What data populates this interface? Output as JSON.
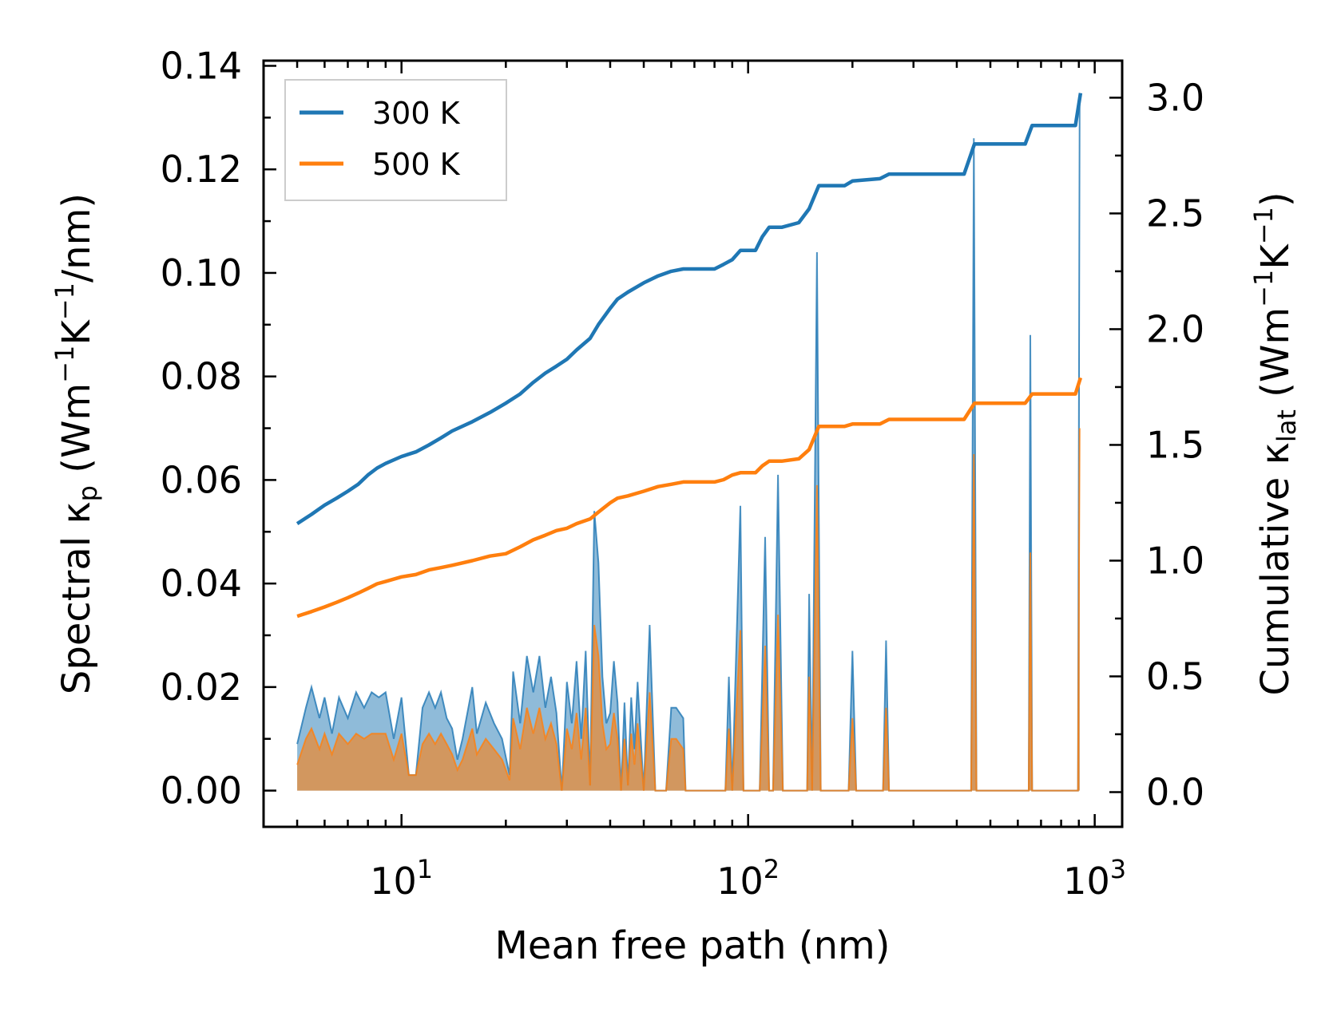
{
  "chart_data": {
    "type": "line",
    "title": "",
    "xlabel": "Mean free path (nm)",
    "ylabel": "Spectral κp (Wm−1K−1/nm)",
    "ylabel_parts": {
      "main": "Spectral κ",
      "sub": "p",
      "unit_open": " (Wm",
      "sup1": "−1",
      "unit_mid": "K",
      "sup2": "−1",
      "unit_close": "/nm)"
    },
    "y2label": "Cumulative κlat (Wm−1K−1)",
    "y2label_parts": {
      "main": "Cumulative κ",
      "sub": "lat",
      "unit_open": " (Wm",
      "sup1": "−1",
      "unit_mid": "K",
      "sup2": "−1",
      "unit_close": ")"
    },
    "xscale": "log",
    "xlim": [
      4.0,
      1200
    ],
    "ylim": [
      -0.007,
      0.141
    ],
    "y2lim": [
      -0.15,
      3.16
    ],
    "x_ticks": [
      {
        "base": "10",
        "exp": "1",
        "value": 10
      },
      {
        "base": "10",
        "exp": "2",
        "value": 100
      },
      {
        "base": "10",
        "exp": "3",
        "value": 1000
      }
    ],
    "y_ticks": [
      "0.00",
      "0.02",
      "0.04",
      "0.06",
      "0.08",
      "0.10",
      "0.12",
      "0.14"
    ],
    "y2_ticks": [
      "0.0",
      "0.5",
      "1.0",
      "1.5",
      "2.0",
      "2.5",
      "3.0"
    ],
    "legend_position": "top-left",
    "legend": [
      {
        "label": "300 K",
        "color": "#1f77b4"
      },
      {
        "label": "500 K",
        "color": "#ff7f0e"
      }
    ],
    "series": [
      {
        "name": "300 K",
        "color": "#1f77b4",
        "cumulative": [
          [
            5,
            1.16
          ],
          [
            5.5,
            1.2
          ],
          [
            6,
            1.24
          ],
          [
            6.5,
            1.27
          ],
          [
            7,
            1.3
          ],
          [
            7.5,
            1.33
          ],
          [
            8,
            1.37
          ],
          [
            8.5,
            1.4
          ],
          [
            9,
            1.42
          ],
          [
            10,
            1.45
          ],
          [
            11,
            1.47
          ],
          [
            12,
            1.5
          ],
          [
            13,
            1.53
          ],
          [
            14,
            1.56
          ],
          [
            16,
            1.6
          ],
          [
            18,
            1.64
          ],
          [
            20,
            1.68
          ],
          [
            22,
            1.72
          ],
          [
            24,
            1.77
          ],
          [
            26,
            1.81
          ],
          [
            28,
            1.84
          ],
          [
            30,
            1.87
          ],
          [
            32,
            1.91
          ],
          [
            35,
            1.96
          ],
          [
            37,
            2.02
          ],
          [
            40,
            2.09
          ],
          [
            42,
            2.13
          ],
          [
            45,
            2.16
          ],
          [
            50,
            2.2
          ],
          [
            55,
            2.23
          ],
          [
            60,
            2.25
          ],
          [
            65,
            2.26
          ],
          [
            80,
            2.26
          ],
          [
            85,
            2.28
          ],
          [
            90,
            2.3
          ],
          [
            95,
            2.34
          ],
          [
            105,
            2.34
          ],
          [
            110,
            2.4
          ],
          [
            115,
            2.44
          ],
          [
            125,
            2.44
          ],
          [
            140,
            2.46
          ],
          [
            150,
            2.52
          ],
          [
            160,
            2.62
          ],
          [
            190,
            2.62
          ],
          [
            200,
            2.64
          ],
          [
            240,
            2.65
          ],
          [
            255,
            2.67
          ],
          [
            420,
            2.67
          ],
          [
            450,
            2.8
          ],
          [
            630,
            2.8
          ],
          [
            660,
            2.88
          ],
          [
            880,
            2.88
          ],
          [
            910,
            3.02
          ]
        ],
        "spectral": [
          [
            5,
            0.009
          ],
          [
            5.3,
            0.016
          ],
          [
            5.5,
            0.02
          ],
          [
            5.8,
            0.014
          ],
          [
            6,
            0.018
          ],
          [
            6.3,
            0.011
          ],
          [
            6.6,
            0.018
          ],
          [
            7,
            0.014
          ],
          [
            7.4,
            0.019
          ],
          [
            7.8,
            0.016
          ],
          [
            8.2,
            0.019
          ],
          [
            8.6,
            0.018
          ],
          [
            9,
            0.019
          ],
          [
            9.5,
            0.01
          ],
          [
            10,
            0.018
          ],
          [
            10.5,
            0.003
          ],
          [
            11,
            0.003
          ],
          [
            11.5,
            0.016
          ],
          [
            12,
            0.019
          ],
          [
            12.5,
            0.016
          ],
          [
            13,
            0.019
          ],
          [
            13.5,
            0.014
          ],
          [
            14,
            0.012
          ],
          [
            14.5,
            0.006
          ],
          [
            15,
            0.01
          ],
          [
            16,
            0.02
          ],
          [
            16.5,
            0.011
          ],
          [
            17.5,
            0.017
          ],
          [
            18.5,
            0.013
          ],
          [
            19.5,
            0.01
          ],
          [
            20.5,
            0.003
          ],
          [
            21,
            0.023
          ],
          [
            22,
            0.013
          ],
          [
            23,
            0.026
          ],
          [
            24,
            0.019
          ],
          [
            25,
            0.026
          ],
          [
            26,
            0.016
          ],
          [
            27,
            0.022
          ],
          [
            28,
            0.015
          ],
          [
            29,
            0.0
          ],
          [
            30,
            0.021
          ],
          [
            31,
            0.013
          ],
          [
            32,
            0.025
          ],
          [
            33,
            0.01
          ],
          [
            34,
            0.027
          ],
          [
            35,
            0.001
          ],
          [
            36,
            0.054
          ],
          [
            37,
            0.044
          ],
          [
            38,
            0.022
          ],
          [
            39,
            0.013
          ],
          [
            40,
            0.015
          ],
          [
            41,
            0.025
          ],
          [
            42,
            0.017
          ],
          [
            43,
            0.0
          ],
          [
            44,
            0.017
          ],
          [
            45,
            0.001
          ],
          [
            46,
            0.018
          ],
          [
            47,
            0.008
          ],
          [
            48,
            0.021
          ],
          [
            50,
            0.0
          ],
          [
            52,
            0.032
          ],
          [
            54,
            0.0
          ],
          [
            58,
            0.0
          ],
          [
            60,
            0.016
          ],
          [
            62,
            0.016
          ],
          [
            65,
            0.014
          ],
          [
            66,
            0.0
          ],
          [
            86,
            0.0
          ],
          [
            88,
            0.022
          ],
          [
            90,
            0.0
          ],
          [
            95,
            0.055
          ],
          [
            97,
            0.0
          ],
          [
            108,
            0.0
          ],
          [
            112,
            0.049
          ],
          [
            115,
            0.0
          ],
          [
            118,
            0.0
          ],
          [
            122,
            0.061
          ],
          [
            126,
            0.0
          ],
          [
            148,
            0.0
          ],
          [
            150,
            0.038
          ],
          [
            153,
            0.0
          ],
          [
            158,
            0.104
          ],
          [
            162,
            0.0
          ],
          [
            195,
            0.0
          ],
          [
            200,
            0.027
          ],
          [
            205,
            0.0
          ],
          [
            245,
            0.0
          ],
          [
            250,
            0.029
          ],
          [
            255,
            0.0
          ],
          [
            440,
            0.0
          ],
          [
            448,
            0.126
          ],
          [
            456,
            0.0
          ],
          [
            645,
            0.0
          ],
          [
            652,
            0.088
          ],
          [
            660,
            0.0
          ],
          [
            895,
            0.0
          ],
          [
            905,
            0.134
          ]
        ]
      },
      {
        "name": "500 K",
        "color": "#ff7f0e",
        "cumulative": [
          [
            5,
            0.76
          ],
          [
            5.5,
            0.78
          ],
          [
            6,
            0.8
          ],
          [
            6.5,
            0.82
          ],
          [
            7,
            0.84
          ],
          [
            7.5,
            0.86
          ],
          [
            8,
            0.88
          ],
          [
            8.5,
            0.9
          ],
          [
            9,
            0.91
          ],
          [
            10,
            0.93
          ],
          [
            11,
            0.94
          ],
          [
            12,
            0.96
          ],
          [
            13,
            0.97
          ],
          [
            14,
            0.98
          ],
          [
            16,
            1.0
          ],
          [
            18,
            1.02
          ],
          [
            20,
            1.03
          ],
          [
            22,
            1.06
          ],
          [
            24,
            1.09
          ],
          [
            26,
            1.11
          ],
          [
            28,
            1.13
          ],
          [
            30,
            1.14
          ],
          [
            32,
            1.16
          ],
          [
            35,
            1.18
          ],
          [
            37,
            1.21
          ],
          [
            40,
            1.25
          ],
          [
            42,
            1.27
          ],
          [
            45,
            1.28
          ],
          [
            50,
            1.3
          ],
          [
            55,
            1.32
          ],
          [
            60,
            1.33
          ],
          [
            65,
            1.34
          ],
          [
            80,
            1.34
          ],
          [
            85,
            1.35
          ],
          [
            90,
            1.37
          ],
          [
            95,
            1.38
          ],
          [
            105,
            1.38
          ],
          [
            110,
            1.41
          ],
          [
            115,
            1.43
          ],
          [
            125,
            1.43
          ],
          [
            140,
            1.44
          ],
          [
            150,
            1.48
          ],
          [
            160,
            1.58
          ],
          [
            190,
            1.58
          ],
          [
            200,
            1.59
          ],
          [
            240,
            1.59
          ],
          [
            255,
            1.61
          ],
          [
            420,
            1.61
          ],
          [
            450,
            1.68
          ],
          [
            630,
            1.68
          ],
          [
            660,
            1.72
          ],
          [
            880,
            1.72
          ],
          [
            910,
            1.79
          ]
        ],
        "spectral": [
          [
            5,
            0.005
          ],
          [
            5.3,
            0.01
          ],
          [
            5.5,
            0.012
          ],
          [
            5.8,
            0.008
          ],
          [
            6,
            0.011
          ],
          [
            6.3,
            0.007
          ],
          [
            6.6,
            0.011
          ],
          [
            7,
            0.009
          ],
          [
            7.4,
            0.011
          ],
          [
            7.8,
            0.01
          ],
          [
            8.2,
            0.011
          ],
          [
            8.6,
            0.011
          ],
          [
            9,
            0.011
          ],
          [
            9.5,
            0.006
          ],
          [
            10,
            0.011
          ],
          [
            10.5,
            0.003
          ],
          [
            11,
            0.003
          ],
          [
            11.5,
            0.009
          ],
          [
            12,
            0.011
          ],
          [
            12.5,
            0.009
          ],
          [
            13,
            0.011
          ],
          [
            13.5,
            0.009
          ],
          [
            14,
            0.007
          ],
          [
            14.5,
            0.004
          ],
          [
            15,
            0.006
          ],
          [
            16,
            0.012
          ],
          [
            16.5,
            0.007
          ],
          [
            17.5,
            0.01
          ],
          [
            18.5,
            0.008
          ],
          [
            19.5,
            0.006
          ],
          [
            20.5,
            0.002
          ],
          [
            21,
            0.014
          ],
          [
            22,
            0.008
          ],
          [
            23,
            0.016
          ],
          [
            24,
            0.011
          ],
          [
            25,
            0.016
          ],
          [
            26,
            0.01
          ],
          [
            27,
            0.013
          ],
          [
            28,
            0.009
          ],
          [
            29,
            0.0
          ],
          [
            30,
            0.012
          ],
          [
            31,
            0.008
          ],
          [
            32,
            0.015
          ],
          [
            33,
            0.006
          ],
          [
            34,
            0.016
          ],
          [
            35,
            0.001
          ],
          [
            36,
            0.032
          ],
          [
            37,
            0.026
          ],
          [
            38,
            0.013
          ],
          [
            39,
            0.008
          ],
          [
            40,
            0.009
          ],
          [
            41,
            0.015
          ],
          [
            42,
            0.01
          ],
          [
            43,
            0.0
          ],
          [
            44,
            0.01
          ],
          [
            45,
            0.001
          ],
          [
            46,
            0.011
          ],
          [
            47,
            0.005
          ],
          [
            48,
            0.013
          ],
          [
            50,
            0.0
          ],
          [
            52,
            0.019
          ],
          [
            54,
            0.0
          ],
          [
            58,
            0.0
          ],
          [
            60,
            0.01
          ],
          [
            62,
            0.01
          ],
          [
            65,
            0.008
          ],
          [
            66,
            0.0
          ],
          [
            86,
            0.0
          ],
          [
            88,
            0.012
          ],
          [
            90,
            0.0
          ],
          [
            95,
            0.031
          ],
          [
            97,
            0.0
          ],
          [
            108,
            0.0
          ],
          [
            112,
            0.028
          ],
          [
            115,
            0.0
          ],
          [
            118,
            0.0
          ],
          [
            122,
            0.034
          ],
          [
            126,
            0.0
          ],
          [
            148,
            0.0
          ],
          [
            150,
            0.022
          ],
          [
            153,
            0.0
          ],
          [
            158,
            0.059
          ],
          [
            162,
            0.0
          ],
          [
            195,
            0.0
          ],
          [
            200,
            0.014
          ],
          [
            205,
            0.0
          ],
          [
            245,
            0.0
          ],
          [
            250,
            0.016
          ],
          [
            255,
            0.0
          ],
          [
            440,
            0.0
          ],
          [
            448,
            0.065
          ],
          [
            456,
            0.0
          ],
          [
            645,
            0.0
          ],
          [
            652,
            0.046
          ],
          [
            660,
            0.0
          ],
          [
            895,
            0.0
          ],
          [
            905,
            0.07
          ]
        ]
      }
    ]
  }
}
